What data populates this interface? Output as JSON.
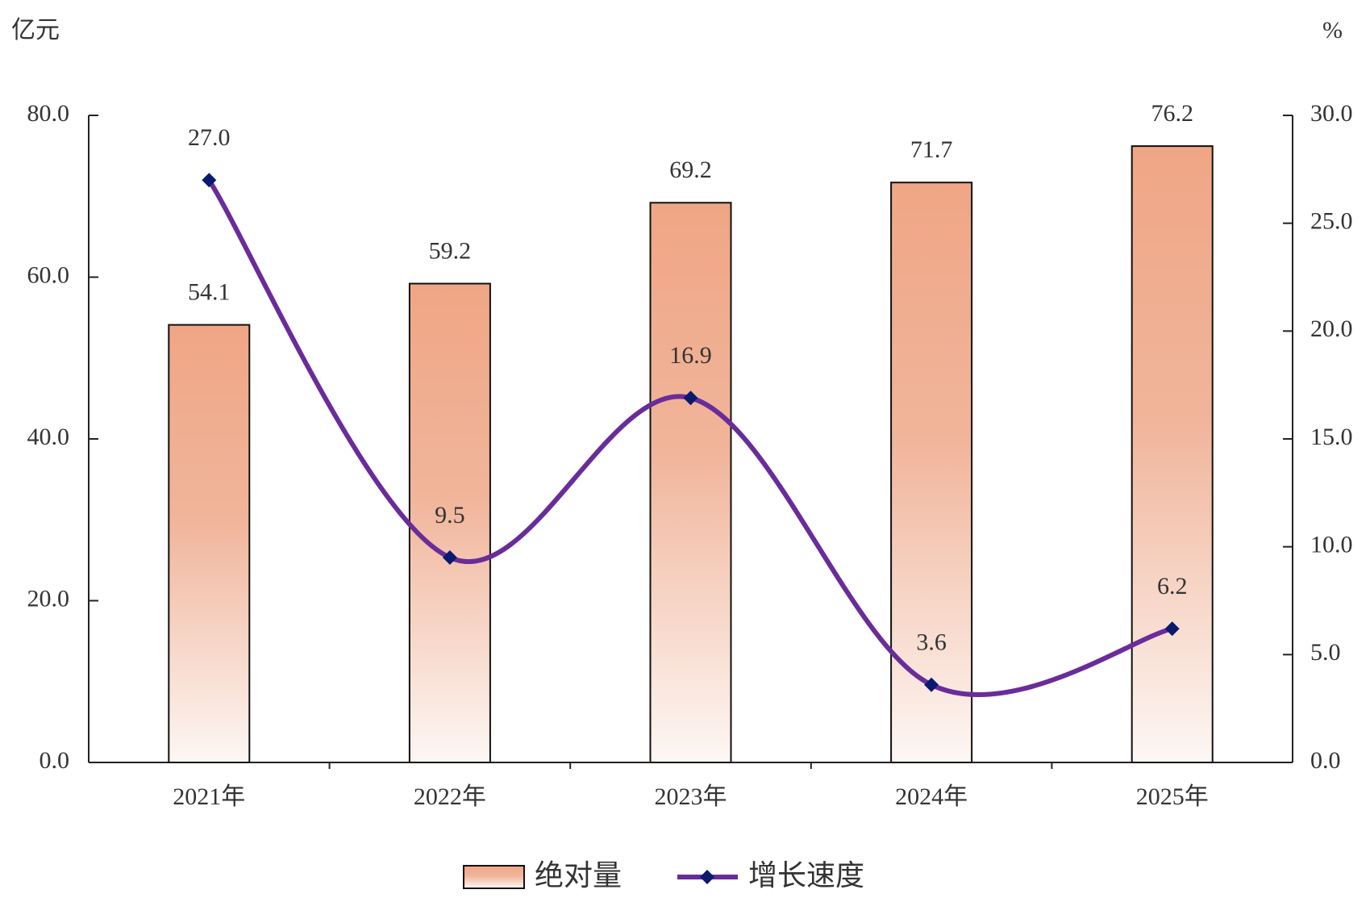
{
  "chart_data": {
    "type": "bar",
    "y_label": "亿元",
    "y2_label": "%",
    "categories": [
      "2021年",
      "2022年",
      "2023年",
      "2024年",
      "2025年"
    ],
    "series": [
      {
        "name": "绝对量",
        "type": "bar",
        "color": "#f0a98a",
        "values": [
          54.1,
          59.2,
          69.2,
          71.7,
          76.2
        ]
      },
      {
        "name": "增长速度",
        "type": "line",
        "axis": "y2",
        "color": "#6a2c9a",
        "marker_color": "#0a1a6e",
        "values": [
          27.0,
          9.5,
          16.9,
          3.6,
          6.2
        ],
        "value_labels": [
          "27.0",
          "9.5",
          "16.9",
          "3.6",
          "6.2"
        ]
      }
    ],
    "ylim": [
      0,
      80
    ],
    "yticks": [
      {
        "value": 0,
        "label": "0.0"
      },
      {
        "value": 20,
        "label": "20.0"
      },
      {
        "value": 40,
        "label": "40.0"
      },
      {
        "value": 60,
        "label": "60.0"
      },
      {
        "value": 80,
        "label": "80.0"
      }
    ],
    "y2lim": [
      0,
      30
    ],
    "y2ticks": [
      {
        "value": 0,
        "label": "0.0"
      },
      {
        "value": 5,
        "label": "5.0"
      },
      {
        "value": 10,
        "label": "10.0"
      },
      {
        "value": 15,
        "label": "15.0"
      },
      {
        "value": 20,
        "label": "20.0"
      },
      {
        "value": 25,
        "label": "25.0"
      },
      {
        "value": 30,
        "label": "30.0"
      }
    ],
    "legend": "bottom"
  }
}
